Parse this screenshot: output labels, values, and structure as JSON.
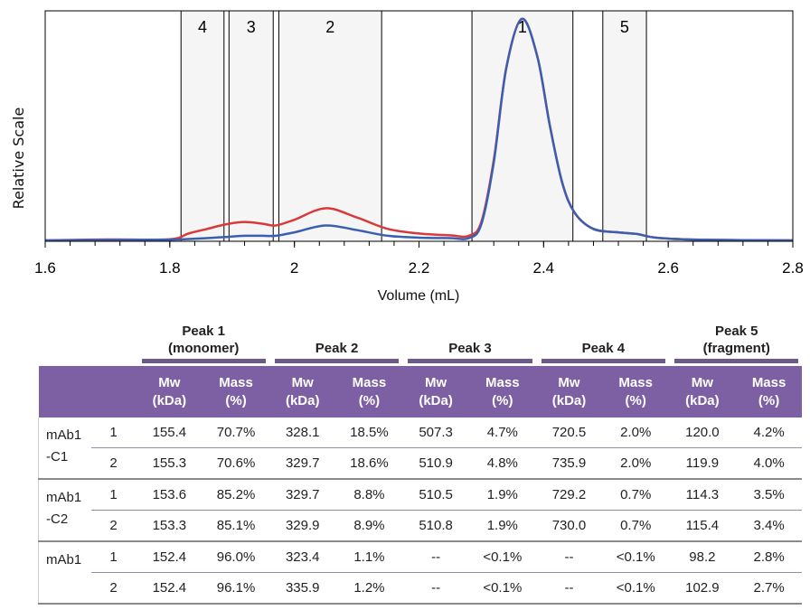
{
  "chart_data": {
    "type": "line",
    "xlabel": "Volume (mL)",
    "ylabel": "Relative Scale",
    "xlim": [
      1.6,
      2.8
    ],
    "ylim": [
      0,
      1
    ],
    "xticks": [
      "1.6",
      "1.8",
      "2",
      "2.2",
      "2.4",
      "2.6",
      "2.8"
    ],
    "xtick_values": [
      1.6,
      1.8,
      2.0,
      2.2,
      2.4,
      2.6,
      2.8
    ],
    "grid": false,
    "peak_regions": [
      {
        "label": "4",
        "x": [
          1.818,
          1.887
        ]
      },
      {
        "label": "3",
        "x": [
          1.895,
          1.966
        ]
      },
      {
        "label": "2",
        "x": [
          1.975,
          2.14
        ]
      },
      {
        "label": "1",
        "x": [
          2.285,
          2.447
        ]
      },
      {
        "label": "5",
        "x": [
          2.495,
          2.565
        ]
      }
    ],
    "series": [
      {
        "name": "red trace",
        "color": "#d9393a",
        "x": [
          1.6,
          1.7,
          1.8,
          1.83,
          1.86,
          1.89,
          1.92,
          1.95,
          1.97,
          2.0,
          2.05,
          2.1,
          2.15,
          2.2,
          2.25,
          2.28,
          2.3,
          2.32,
          2.34,
          2.365,
          2.39,
          2.41,
          2.43,
          2.45,
          2.48,
          2.52,
          2.55,
          2.58,
          2.65,
          2.8
        ],
        "y": [
          0,
          0.004,
          0.005,
          0.03,
          0.05,
          0.07,
          0.08,
          0.072,
          0.065,
          0.09,
          0.14,
          0.1,
          0.05,
          0.03,
          0.022,
          0.02,
          0.08,
          0.35,
          0.75,
          0.965,
          0.8,
          0.5,
          0.25,
          0.12,
          0.05,
          0.035,
          0.028,
          0.012,
          0.003,
          0
        ]
      },
      {
        "name": "blue trace",
        "color": "#3b5fb0",
        "x": [
          1.6,
          1.7,
          1.8,
          1.83,
          1.86,
          1.89,
          1.92,
          1.95,
          1.97,
          2.0,
          2.05,
          2.1,
          2.15,
          2.2,
          2.25,
          2.28,
          2.3,
          2.32,
          2.34,
          2.365,
          2.39,
          2.41,
          2.43,
          2.45,
          2.48,
          2.52,
          2.55,
          2.58,
          2.65,
          2.8
        ],
        "y": [
          0,
          0.002,
          0.003,
          0.006,
          0.01,
          0.015,
          0.02,
          0.02,
          0.02,
          0.035,
          0.065,
          0.045,
          0.02,
          0.012,
          0.01,
          0.01,
          0.07,
          0.34,
          0.75,
          0.965,
          0.8,
          0.5,
          0.25,
          0.12,
          0.05,
          0.035,
          0.028,
          0.012,
          0.003,
          0
        ]
      }
    ]
  },
  "table": {
    "groups": [
      {
        "line1": "Peak 1",
        "line2": "(monomer)"
      },
      {
        "line1": "Peak 2",
        "line2": ""
      },
      {
        "line1": "Peak 3",
        "line2": ""
      },
      {
        "line1": "Peak 4",
        "line2": ""
      },
      {
        "line1": "Peak 5",
        "line2": "(fragment)"
      }
    ],
    "subheaders": {
      "mw1": "Mw",
      "mw2": "(kDa)",
      "mass1": "Mass",
      "mass2": "(%)"
    },
    "samples": [
      {
        "label1": "mAb1",
        "label2": "-C1",
        "rows": [
          {
            "rep": "1",
            "values": [
              "155.4",
              "70.7%",
              "328.1",
              "18.5%",
              "507.3",
              "4.7%",
              "720.5",
              "2.0%",
              "120.0",
              "4.2%"
            ]
          },
          {
            "rep": "2",
            "values": [
              "155.3",
              "70.6%",
              "329.7",
              "18.6%",
              "510.9",
              "4.8%",
              "735.9",
              "2.0%",
              "119.9",
              "4.0%"
            ]
          }
        ]
      },
      {
        "label1": "mAb1",
        "label2": "-C2",
        "rows": [
          {
            "rep": "1",
            "values": [
              "153.6",
              "85.2%",
              "329.7",
              "8.8%",
              "510.5",
              "1.9%",
              "729.2",
              "0.7%",
              "114.3",
              "3.5%"
            ]
          },
          {
            "rep": "2",
            "values": [
              "153.3",
              "85.1%",
              "329.9",
              "8.9%",
              "510.8",
              "1.9%",
              "730.0",
              "0.7%",
              "115.4",
              "3.4%"
            ]
          }
        ]
      },
      {
        "label1": "mAb1",
        "label2": "",
        "rows": [
          {
            "rep": "1",
            "values": [
              "152.4",
              "96.0%",
              "323.4",
              "1.1%",
              "--",
              "<0.1%",
              "--",
              "<0.1%",
              "98.2",
              "2.8%"
            ]
          },
          {
            "rep": "2",
            "values": [
              "152.4",
              "96.1%",
              "335.9",
              "1.2%",
              "--",
              "<0.1%",
              "--",
              "<0.1%",
              "102.9",
              "2.7%"
            ]
          }
        ]
      }
    ]
  }
}
